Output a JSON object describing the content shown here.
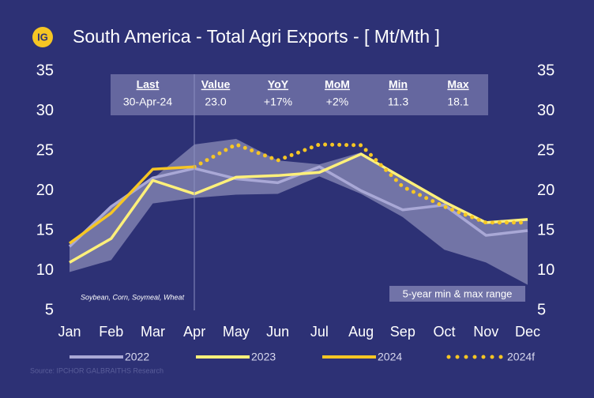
{
  "chart_data": {
    "type": "line",
    "title": "South America - Total Agri Exports - [ Mt/Mth ]",
    "logo": "IG",
    "categories": [
      "Jan",
      "Feb",
      "Mar",
      "Apr",
      "May",
      "Jun",
      "Jul",
      "Aug",
      "Sep",
      "Oct",
      "Nov",
      "Dec"
    ],
    "ylim": [
      5,
      35
    ],
    "yticks": [
      5,
      10,
      15,
      20,
      25,
      30,
      35
    ],
    "y2lim": [
      5,
      35
    ],
    "y2ticks": [
      5,
      10,
      15,
      20,
      25,
      30,
      35
    ],
    "range_band": {
      "name": "5-year min & max range",
      "color": "#b7b8d8",
      "min": [
        9.8,
        11.3,
        18.4,
        19.1,
        19.5,
        19.6,
        21.8,
        19.6,
        16.7,
        12.6,
        11.0,
        8.2
      ],
      "max": [
        13.0,
        18.2,
        21.5,
        25.8,
        26.5,
        23.8,
        23.3,
        24.8,
        21.5,
        18.5,
        16.0,
        16.3
      ]
    },
    "series": [
      {
        "name": "2022",
        "color": "#a9a8d6",
        "style": "solid",
        "values": [
          13.0,
          18.0,
          21.6,
          22.8,
          21.5,
          21.0,
          23.0,
          20.0,
          17.6,
          18.2,
          14.4,
          15.0
        ]
      },
      {
        "name": "2023",
        "color": "#fff07a",
        "style": "solid",
        "values": [
          11.0,
          14.0,
          21.3,
          19.6,
          21.7,
          21.9,
          22.3,
          24.6,
          21.6,
          18.6,
          16.0,
          16.4
        ]
      },
      {
        "name": "2024",
        "color": "#f6c624",
        "style": "solid",
        "values": [
          13.4,
          17.2,
          22.7,
          23.0,
          null,
          null,
          null,
          null,
          null,
          null,
          null,
          null
        ]
      },
      {
        "name": "2024f",
        "color": "#f6c624",
        "style": "dotted",
        "values": [
          null,
          null,
          null,
          23.0,
          25.8,
          23.8,
          25.8,
          25.7,
          20.5,
          18.0,
          16.0,
          16.0
        ]
      }
    ],
    "summary_table": {
      "headers": [
        "Last",
        "Value",
        "YoY",
        "MoM",
        "Min",
        "Max"
      ],
      "row": [
        "30-Apr-24",
        "23.0",
        "+17%",
        "+2%",
        "11.3",
        "18.1"
      ]
    },
    "annotation": "Soybean, Corn, Soymeal, Wheat",
    "source": "Source:  IPCHOR GALBRAITHS  Research"
  }
}
